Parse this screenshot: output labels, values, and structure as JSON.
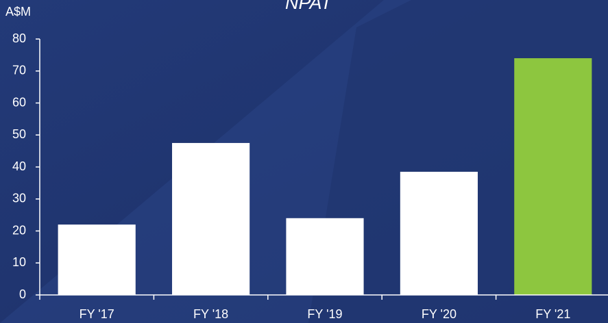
{
  "chart_data": {
    "type": "bar",
    "title": "NPAT",
    "y_label": "A$M",
    "categories": [
      "FY '17",
      "FY '18",
      "FY '19",
      "FY '20",
      "FY '21"
    ],
    "values": [
      22,
      47.5,
      24,
      38.5,
      74
    ],
    "colors": [
      "#ffffff",
      "#ffffff",
      "#ffffff",
      "#ffffff",
      "#8dc63f"
    ],
    "ylim": [
      0,
      80
    ],
    "yticks": [
      0,
      10,
      20,
      30,
      40,
      50,
      60,
      70,
      80
    ],
    "grid": false
  }
}
